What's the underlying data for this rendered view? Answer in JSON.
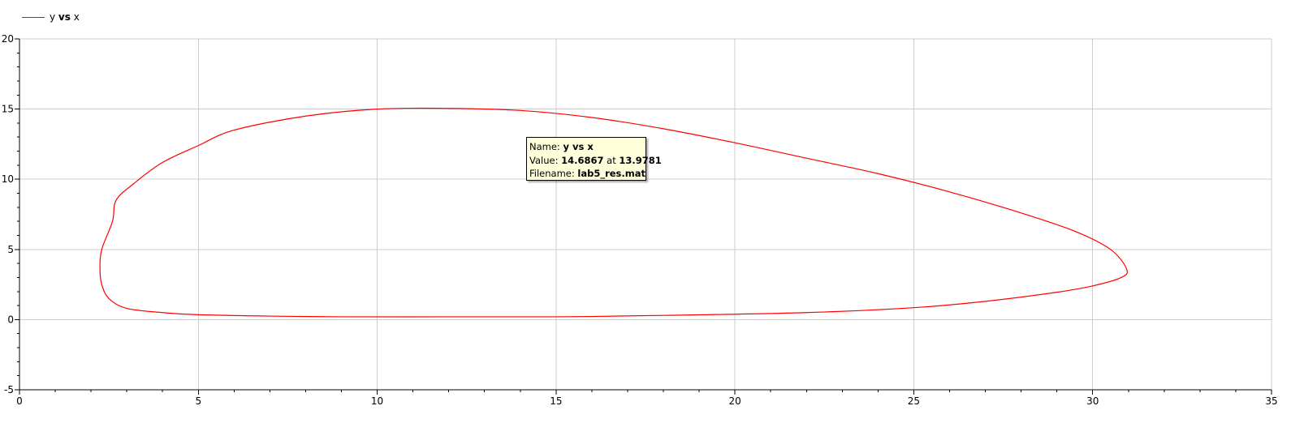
{
  "legend": {
    "label_start": "y ",
    "label_vs": "vs",
    "label_end": " x"
  },
  "tooltip": {
    "name_label": "Name: ",
    "name_value": "y vs x",
    "value_label": "Value: ",
    "value_y": "14.6867",
    "value_at": " at ",
    "value_x": "13.9781",
    "file_label": "Filename: ",
    "file_value": "lab5_res.mat"
  },
  "chart_data": {
    "type": "line",
    "title": "",
    "xlabel": "",
    "ylabel": "",
    "xlim": [
      0,
      35
    ],
    "ylim": [
      -5,
      20
    ],
    "xticks": [
      0,
      5,
      10,
      15,
      20,
      25,
      30,
      35
    ],
    "yticks": [
      -5,
      0,
      5,
      10,
      15,
      20
    ],
    "grid": true,
    "legend_position": "top-left",
    "colors": {
      "series": "#ff0000",
      "grid": "#cccccc",
      "axis": "#000000"
    },
    "series": [
      {
        "name": "y vs x",
        "x": [
          2.6,
          2.7,
          3.2,
          4.0,
          5.0,
          6.0,
          8.0,
          10.0,
          12.0,
          14.0,
          16.0,
          18.0,
          20.0,
          22.0,
          24.0,
          26.0,
          28.0,
          29.5,
          30.5,
          30.95,
          30.8,
          30.0,
          29.0,
          27.0,
          25.0,
          22.0,
          18.0,
          15.0,
          12.0,
          9.0,
          7.0,
          5.0,
          4.0,
          3.0,
          2.5,
          2.3,
          2.25,
          2.3,
          2.6
        ],
        "y": [
          7.0,
          8.5,
          9.7,
          11.2,
          12.4,
          13.5,
          14.5,
          15.0,
          15.05,
          14.9,
          14.4,
          13.6,
          12.6,
          11.5,
          10.4,
          9.1,
          7.6,
          6.3,
          5.0,
          3.6,
          3.0,
          2.4,
          1.95,
          1.3,
          0.85,
          0.5,
          0.3,
          0.2,
          0.2,
          0.2,
          0.25,
          0.35,
          0.5,
          0.8,
          1.5,
          2.5,
          3.6,
          5.0,
          7.0
        ]
      }
    ]
  }
}
